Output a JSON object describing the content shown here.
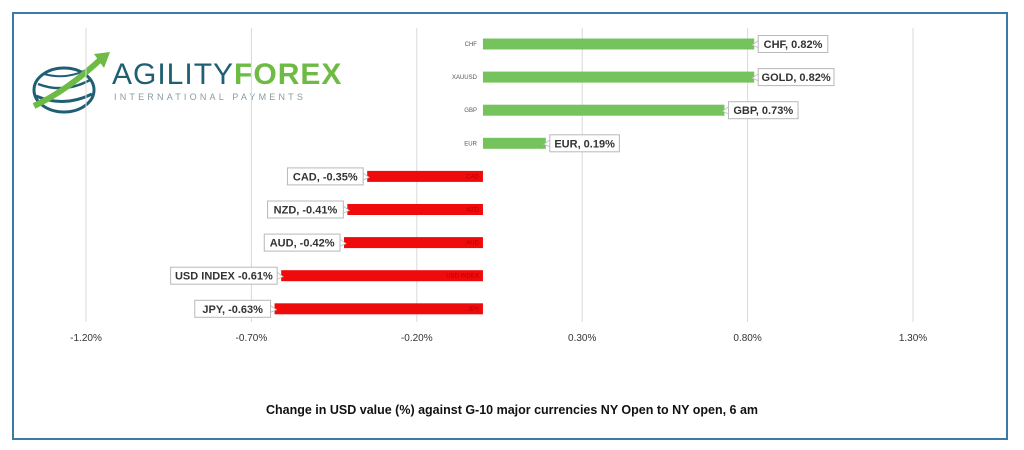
{
  "logo": {
    "word_a": "AGILITY",
    "word_b": "FOREX",
    "tagline": "INTERNATIONAL PAYMENTS"
  },
  "caption": "Change in  USD value (%)  against  G-10 major currencies NY Open to  NY open, 6 am",
  "colors": {
    "positive": "#74c35c",
    "negative": "#ef0b0b",
    "gridline": "#d9d9d9",
    "frame": "#3a7aa8"
  },
  "chart_data": {
    "type": "bar",
    "orientation": "horizontal",
    "categories": [
      "CHF",
      "XAUUSD",
      "GBP",
      "EUR",
      "CAD",
      "NZD",
      "AUD",
      "USD INDEX",
      "JPY"
    ],
    "values": [
      0.82,
      0.82,
      0.73,
      0.19,
      -0.35,
      -0.41,
      -0.42,
      -0.61,
      -0.63
    ],
    "data_labels": [
      "CHF, 0.82%",
      "GOLD, 0.82%",
      "GBP, 0.73%",
      "EUR, 0.19%",
      "CAD, -0.35%",
      "NZD, -0.41%",
      "AUD, -0.42%",
      "USD INDEX -0.61%",
      "JPY, -0.63%"
    ],
    "axis_ticks": [
      -1.2,
      -0.7,
      -0.2,
      0.3,
      0.8,
      1.3
    ],
    "axis_tick_labels": [
      "-1.20%",
      "-0.70%",
      "-0.20%",
      "0.30%",
      "0.80%",
      "1.30%"
    ],
    "xlim": [
      -1.2,
      1.3
    ],
    "grid": true,
    "legend": "none"
  }
}
